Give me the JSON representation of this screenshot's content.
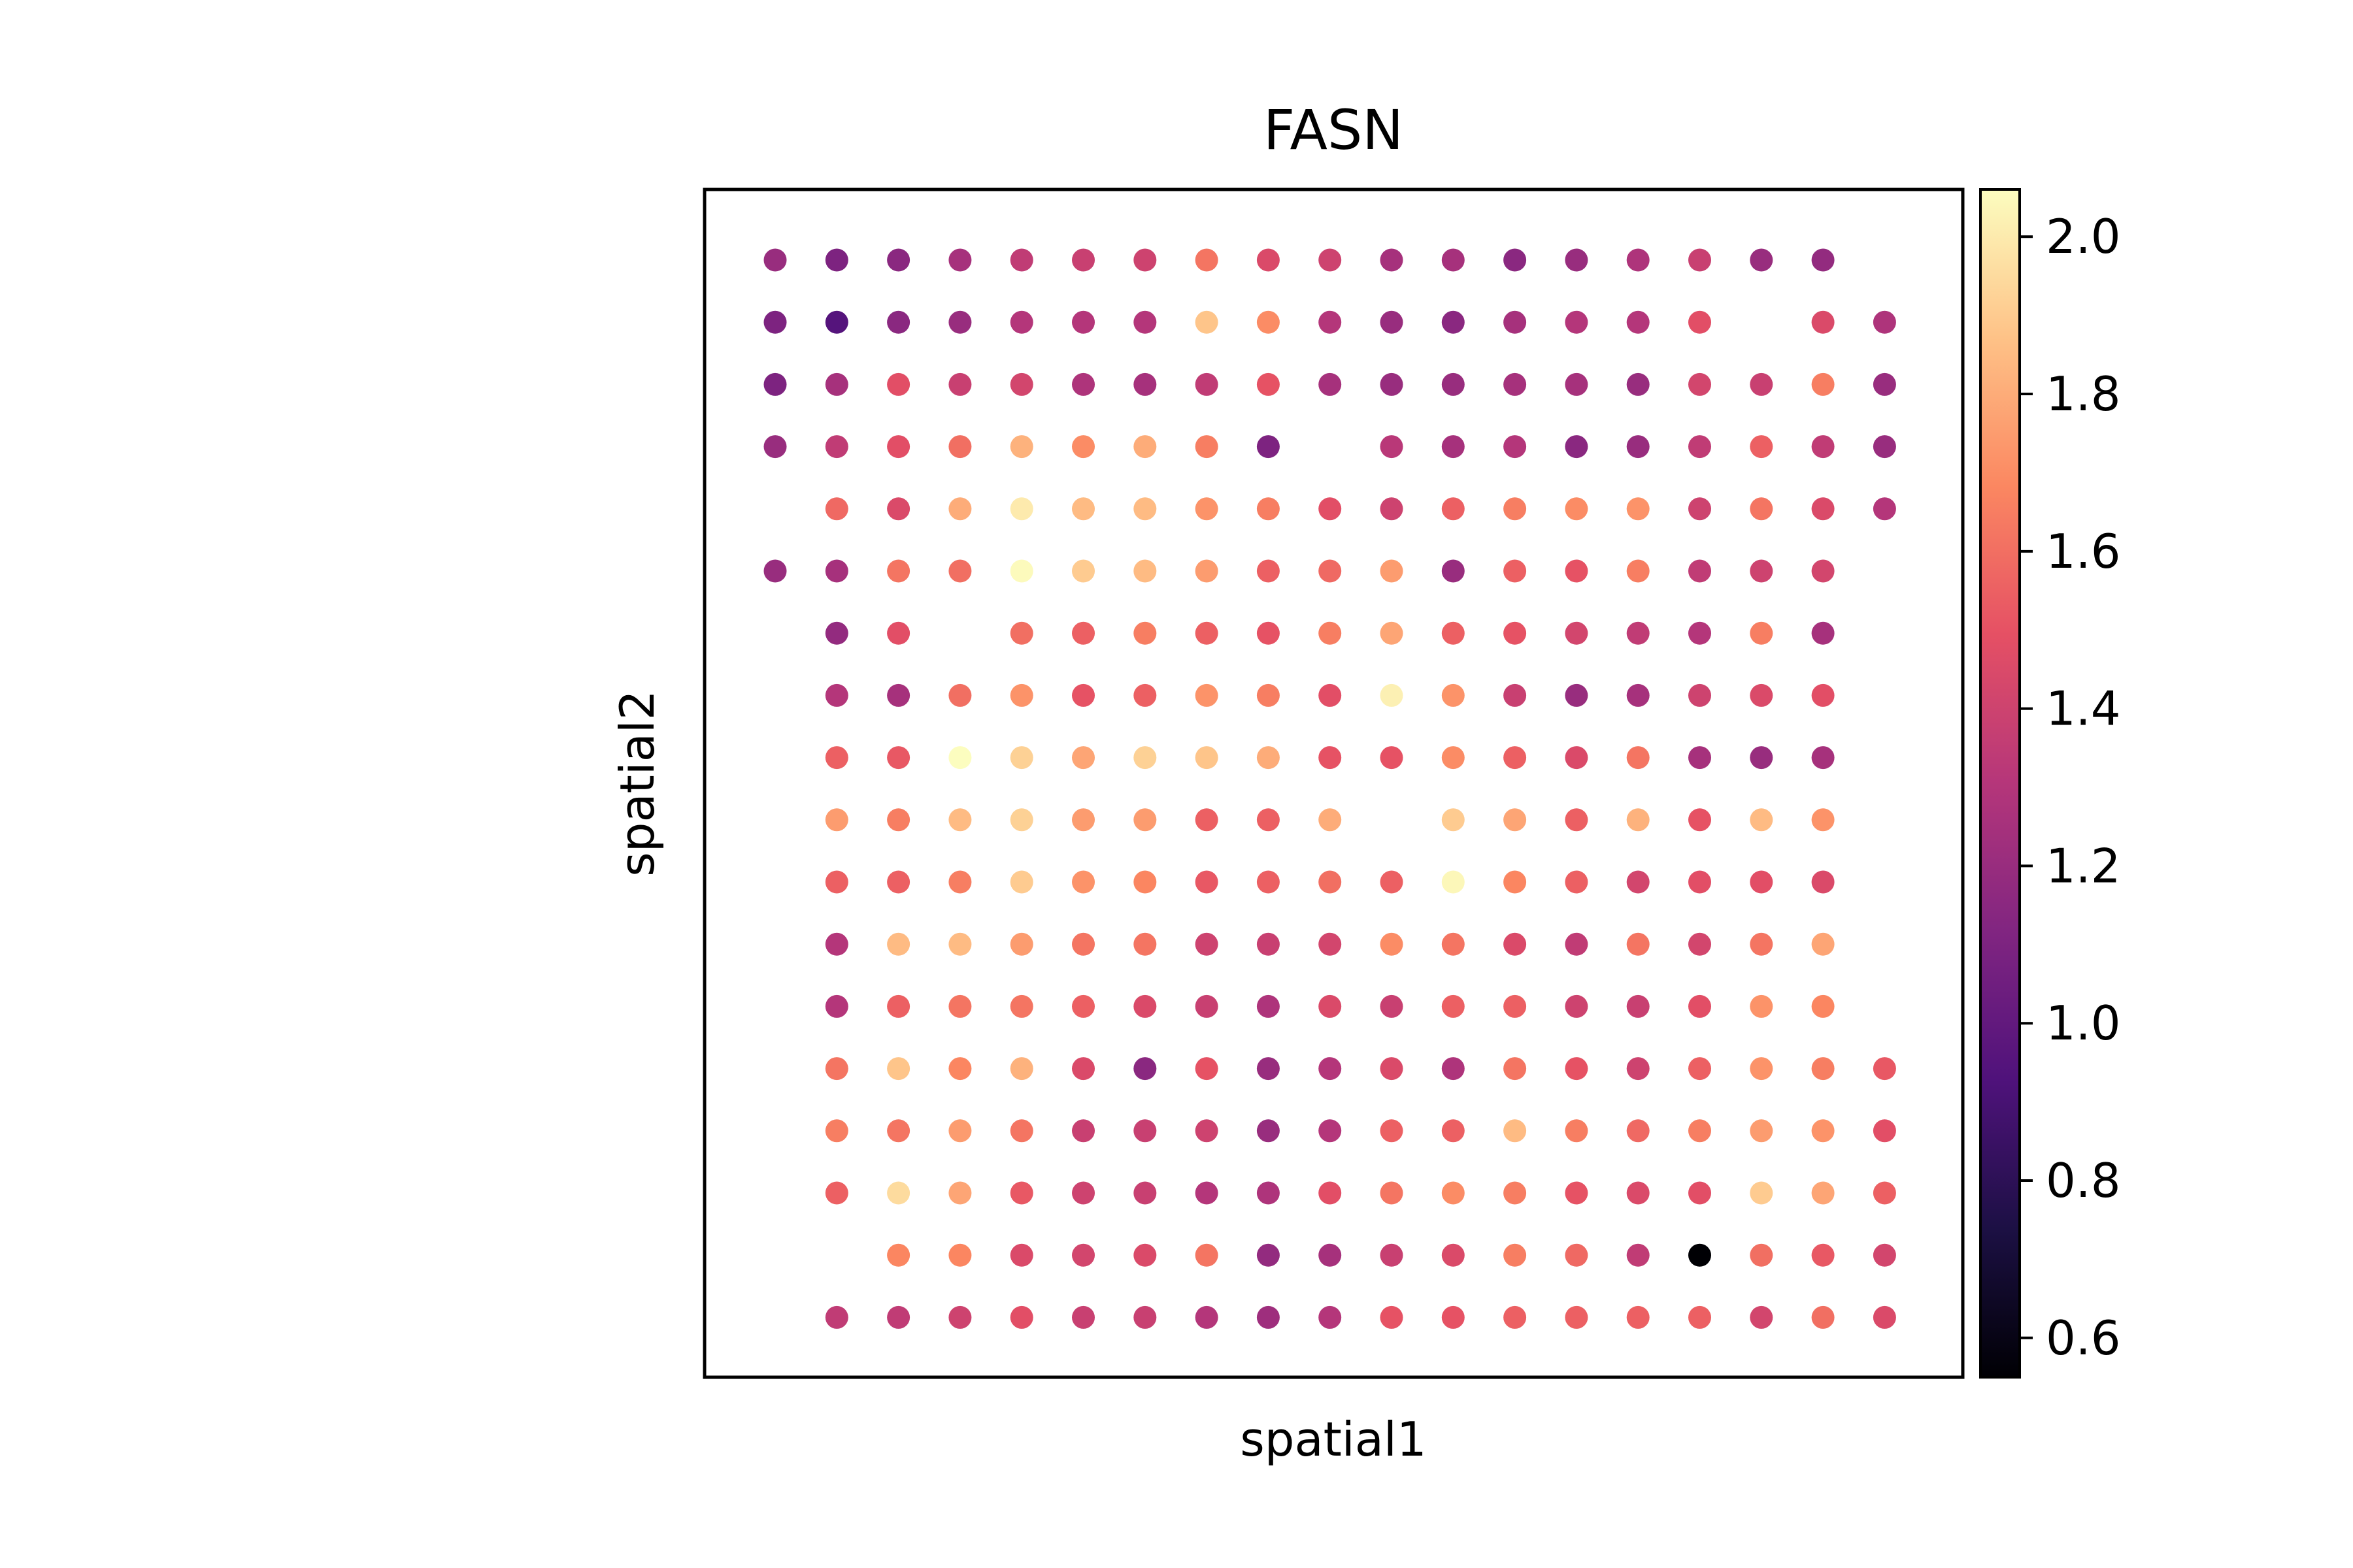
{
  "chart_data": {
    "type": "scatter",
    "title": "FASN",
    "xlabel": "spatial1",
    "ylabel": "spatial2",
    "axis_ticks": false,
    "grid": false,
    "colormap": "magma",
    "colorbar": {
      "vmin": 0.55,
      "vmax": 2.06,
      "ticks": [
        0.6,
        0.8,
        1.0,
        1.2,
        1.4,
        1.6,
        1.8,
        2.0
      ],
      "tick_labels": [
        "0.6",
        "0.8",
        "1.0",
        "1.2",
        "1.4",
        "1.6",
        "1.8",
        "2.0"
      ],
      "location": "right"
    },
    "x_columns": [
      0,
      1,
      2,
      3,
      4,
      5,
      6,
      7,
      8,
      9,
      10,
      11,
      12,
      13,
      14,
      15,
      16,
      17,
      18
    ],
    "rows_top_to_bottom": [
      {
        "row": 0,
        "values": [
          1.2,
          1.1,
          1.15,
          1.25,
          1.35,
          1.38,
          1.4,
          1.62,
          1.45,
          1.4,
          1.25,
          1.25,
          1.15,
          1.2,
          1.28,
          1.38,
          1.2,
          1.18,
          null
        ]
      },
      {
        "row": 1,
        "values": [
          1.1,
          0.95,
          1.15,
          1.2,
          1.3,
          1.3,
          1.3,
          1.88,
          1.7,
          1.3,
          1.2,
          1.15,
          1.25,
          1.3,
          1.3,
          1.48,
          null,
          1.45,
          1.28
        ]
      },
      {
        "row": 2,
        "values": [
          1.1,
          1.25,
          1.48,
          1.38,
          1.42,
          1.28,
          1.25,
          1.35,
          1.5,
          1.25,
          1.2,
          1.2,
          1.25,
          1.25,
          1.2,
          1.42,
          1.38,
          1.65,
          1.2
        ]
      },
      {
        "row": 3,
        "values": [
          1.2,
          1.35,
          1.48,
          1.6,
          1.82,
          1.7,
          1.8,
          1.65,
          1.1,
          null,
          1.32,
          1.25,
          1.3,
          1.15,
          1.2,
          1.35,
          1.55,
          1.35,
          1.2
        ]
      },
      {
        "row": 4,
        "values": [
          null,
          1.58,
          1.45,
          1.8,
          2.0,
          1.85,
          1.85,
          1.72,
          1.65,
          1.48,
          1.4,
          1.55,
          1.65,
          1.7,
          1.72,
          1.4,
          1.62,
          1.45,
          1.3
        ]
      },
      {
        "row": 5,
        "values": [
          1.2,
          1.25,
          1.62,
          1.6,
          2.05,
          1.9,
          1.85,
          1.75,
          1.55,
          1.58,
          1.75,
          1.2,
          1.55,
          1.5,
          1.65,
          1.35,
          1.4,
          1.42,
          null
        ]
      },
      {
        "row": 6,
        "values": [
          null,
          1.18,
          1.48,
          null,
          1.6,
          1.55,
          1.65,
          1.55,
          1.5,
          1.65,
          1.78,
          1.55,
          1.5,
          1.42,
          1.35,
          1.3,
          1.65,
          1.25,
          null
        ]
      },
      {
        "row": 7,
        "values": [
          null,
          1.3,
          1.25,
          1.6,
          1.72,
          1.5,
          1.55,
          1.72,
          1.65,
          1.48,
          2.02,
          1.72,
          1.38,
          1.2,
          1.25,
          1.4,
          1.45,
          1.48,
          null
        ]
      },
      {
        "row": 8,
        "values": [
          null,
          1.55,
          1.52,
          2.06,
          1.92,
          1.78,
          1.92,
          1.88,
          1.8,
          1.5,
          1.5,
          1.7,
          1.55,
          1.45,
          1.62,
          1.25,
          1.2,
          1.25,
          null
        ]
      },
      {
        "row": 9,
        "values": [
          null,
          1.75,
          1.65,
          1.85,
          1.92,
          1.75,
          1.75,
          1.55,
          1.55,
          1.8,
          null,
          1.9,
          1.78,
          1.55,
          1.82,
          1.5,
          1.85,
          1.72,
          null
        ]
      },
      {
        "row": 10,
        "values": [
          null,
          1.55,
          1.55,
          1.65,
          1.9,
          1.72,
          1.68,
          1.52,
          1.55,
          1.6,
          1.55,
          2.04,
          1.68,
          1.55,
          1.42,
          1.48,
          1.48,
          1.45,
          null
        ]
      },
      {
        "row": 11,
        "values": [
          null,
          1.3,
          1.85,
          1.85,
          1.75,
          1.62,
          1.62,
          1.4,
          1.38,
          1.42,
          1.7,
          1.62,
          1.45,
          1.35,
          1.62,
          1.42,
          1.62,
          1.78,
          null
        ]
      },
      {
        "row": 12,
        "values": [
          null,
          1.3,
          1.55,
          1.62,
          1.62,
          1.55,
          1.45,
          1.38,
          1.28,
          1.45,
          1.38,
          1.55,
          1.55,
          1.4,
          1.38,
          1.48,
          1.72,
          1.68,
          null
        ]
      },
      {
        "row": 13,
        "values": [
          null,
          1.62,
          1.88,
          1.68,
          1.82,
          1.45,
          1.15,
          1.5,
          1.2,
          1.3,
          1.45,
          1.28,
          1.62,
          1.5,
          1.4,
          1.55,
          1.72,
          1.65,
          1.52
        ]
      },
      {
        "row": 14,
        "values": [
          null,
          1.65,
          1.62,
          1.75,
          1.62,
          1.38,
          1.38,
          1.4,
          1.2,
          1.3,
          1.55,
          1.55,
          1.85,
          1.65,
          1.58,
          1.65,
          1.75,
          1.72,
          1.48
        ]
      },
      {
        "row": 15,
        "values": [
          null,
          1.55,
          1.95,
          1.78,
          1.52,
          1.4,
          1.38,
          1.3,
          1.28,
          1.48,
          1.62,
          1.7,
          1.65,
          1.5,
          1.45,
          1.48,
          1.9,
          1.78,
          1.55
        ]
      },
      {
        "row": 16,
        "values": [
          null,
          null,
          1.68,
          1.68,
          1.45,
          1.42,
          1.45,
          1.62,
          1.18,
          1.25,
          1.38,
          1.45,
          1.65,
          1.58,
          1.35,
          0.55,
          1.6,
          1.52,
          1.42
        ]
      },
      {
        "row": 17,
        "values": [
          null,
          1.35,
          1.35,
          1.4,
          1.48,
          1.38,
          1.38,
          1.3,
          1.22,
          1.3,
          1.5,
          1.5,
          1.55,
          1.55,
          1.55,
          1.55,
          1.42,
          1.6,
          1.45
        ]
      }
    ]
  }
}
